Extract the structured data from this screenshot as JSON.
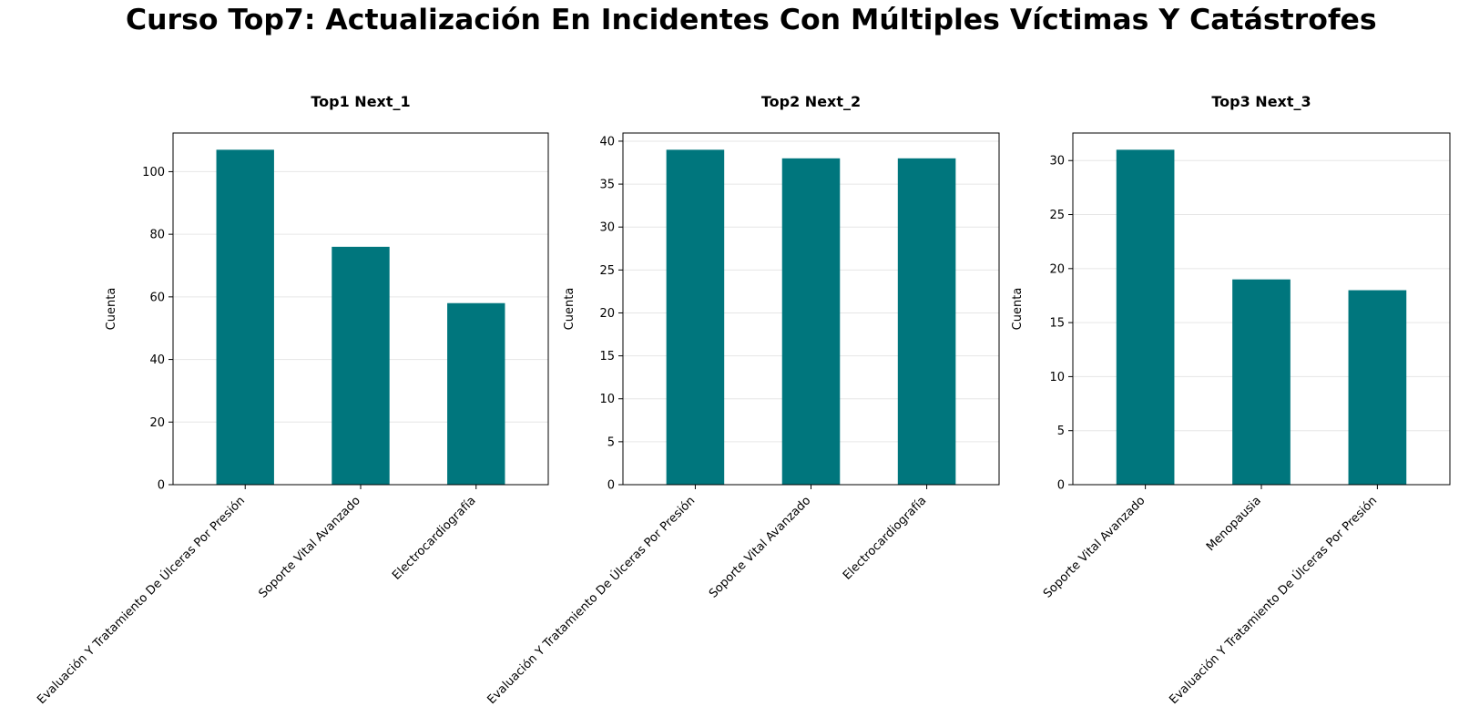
{
  "page": {
    "title": "Curso Top7: Actualización En Incidentes Con Múltiples Víctimas Y Catástrofes"
  },
  "colors": {
    "bar": "#00767d",
    "grid": "#e6e6e6",
    "axis": "#000000"
  },
  "chart_data": [
    {
      "type": "bar",
      "title": "Top1 Next_1",
      "ylabel": "Cuenta",
      "xlabel": "",
      "categories": [
        "Evaluación Y Tratamiento De Úlceras Por Presión",
        "Soporte Vital Avanzado",
        "Electrocardiografía"
      ],
      "values": [
        107,
        76,
        58
      ],
      "ylim": [
        0,
        112.35
      ],
      "yticks": [
        0,
        20,
        40,
        60,
        80,
        100
      ],
      "grid": "y"
    },
    {
      "type": "bar",
      "title": "Top2 Next_2",
      "ylabel": "Cuenta",
      "xlabel": "",
      "categories": [
        "Evaluación Y Tratamiento De Úlceras Por Presión",
        "Soporte Vital Avanzado",
        "Electrocardiografía"
      ],
      "values": [
        39,
        38,
        38
      ],
      "ylim": [
        0,
        40.95
      ],
      "yticks": [
        0,
        5,
        10,
        15,
        20,
        25,
        30,
        35,
        40
      ],
      "grid": "y"
    },
    {
      "type": "bar",
      "title": "Top3 Next_3",
      "ylabel": "Cuenta",
      "xlabel": "",
      "categories": [
        "Soporte Vital Avanzado",
        "Menopausia",
        "Evaluación Y Tratamiento De Úlceras Por Presión"
      ],
      "values": [
        31,
        19,
        18
      ],
      "ylim": [
        0,
        32.55
      ],
      "yticks": [
        0,
        5,
        10,
        15,
        20,
        25,
        30
      ],
      "grid": "y"
    }
  ]
}
